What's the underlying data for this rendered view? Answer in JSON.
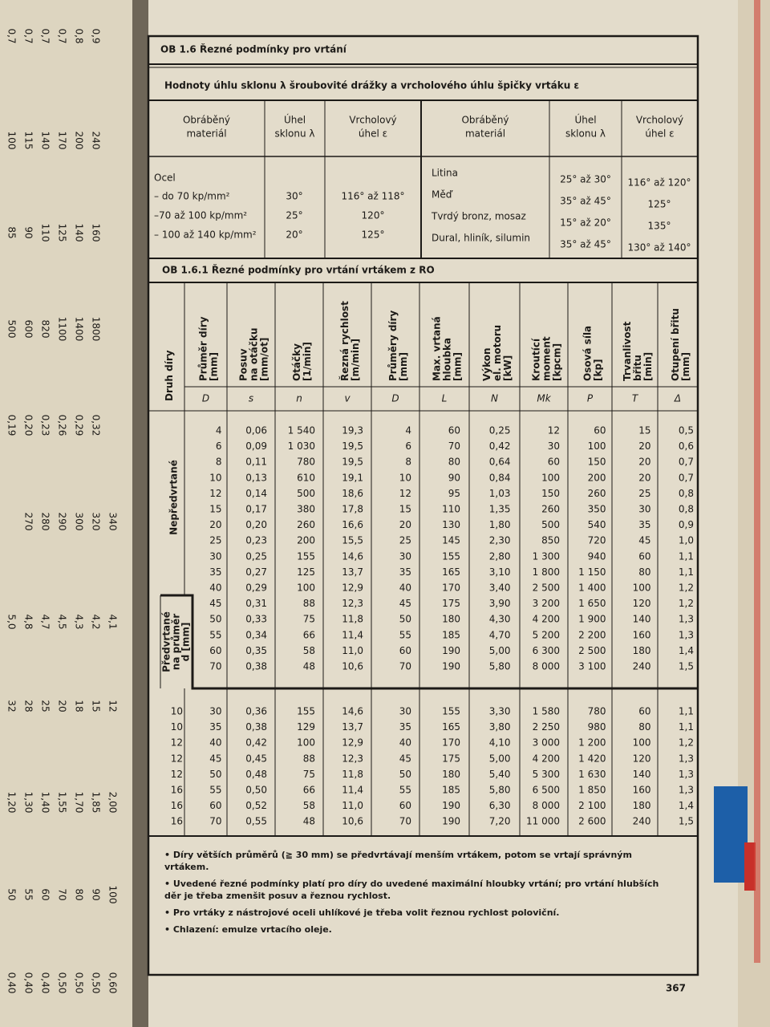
{
  "left_page": {
    "groups": [
      [
        "0,7",
        "0,7",
        "0,7",
        "0,7",
        "0,8",
        "0,9"
      ],
      [
        "100",
        "115",
        "140",
        "170",
        "200",
        "240"
      ],
      [
        "85",
        "90",
        "110",
        "125",
        "140",
        "160"
      ],
      [
        "500",
        "600",
        "820",
        "1100",
        "1400",
        "1800"
      ],
      [
        "0,19",
        "0,20",
        "0,23",
        "0,26",
        "0,29",
        "0,32"
      ],
      [
        null,
        "270",
        "280",
        "290",
        "300",
        "320",
        "340"
      ],
      [
        "5,0",
        "4,8",
        "4,7",
        "4,5",
        "4,3",
        "4,2",
        "4,1"
      ],
      [
        "32",
        "28",
        "25",
        "20",
        "18",
        "15",
        "12"
      ],
      [
        "1,20",
        "1,30",
        "1,40",
        "1,55",
        "1,70",
        "1,85",
        "2,00"
      ],
      [
        "50",
        "55",
        "60",
        "70",
        "80",
        "90",
        "100"
      ],
      [
        "0,40",
        "0,40",
        "0,40",
        "0,50",
        "0,50",
        "0,50",
        "0,60"
      ]
    ]
  },
  "title": "OB 1.6 Řezné podmínky pro vrtání",
  "subtitle": "Hodnoty úhlu sklonu λ šroubovité drážky a vrcholového úhlu špičky vrtáku ε",
  "top_table": {
    "headers": [
      [
        "Obráběný",
        "materiál"
      ],
      [
        "Úhel",
        "sklonu λ"
      ],
      [
        "Vrcholový",
        "úhel ε"
      ],
      [
        "Obráběný",
        "materiál"
      ],
      [
        "Úhel",
        "sklonu λ"
      ],
      [
        "Vrcholový",
        "úhel ε"
      ]
    ],
    "left_group": "Ocel",
    "left_rows": [
      [
        "– do 70 kp/mm²",
        "30°",
        "116° až 118°"
      ],
      [
        "–70 až 100 kp/mm²",
        "25°",
        "120°"
      ],
      [
        "– 100 až 140 kp/mm²",
        "20°",
        "125°"
      ]
    ],
    "right_rows": [
      [
        "Litina",
        "25° až 30°",
        "116° až 120°"
      ],
      [
        "Měď",
        "35° až 45°",
        "125°"
      ],
      [
        "Tvrdý bronz, mosaz",
        "15° až 20°",
        "135°"
      ],
      [
        "Dural, hliník, silumin",
        "35° až 45°",
        "130° až 140°"
      ]
    ]
  },
  "section_title": "OB 1.6.1 Řezné podmínky pro vrtání vrtákem z RO",
  "main_table": {
    "headers": [
      [
        "Druh díry"
      ],
      [
        "Průměr díry",
        "[mm]"
      ],
      [
        "Posuv",
        "na otáčku",
        "[mm/ot]"
      ],
      [
        "Otáčky",
        "[1/min]"
      ],
      [
        "Řezná rychlost",
        "[m/min]"
      ],
      [
        "Průměry díry",
        "[mm]"
      ],
      [
        "Max. vrtaná",
        "hloubka",
        "[mm]"
      ],
      [
        "Výkon",
        "el. motoru",
        "[kW]"
      ],
      [
        "Kroutící",
        "moment",
        "[kpcm]"
      ],
      [
        "Osová síla",
        "[kp]"
      ],
      [
        "Trvanlivost",
        "břitu",
        "[min]"
      ],
      [
        "Otupení břitu",
        "[mm]"
      ]
    ],
    "symbols": [
      "D",
      "s",
      "n",
      "v",
      "D",
      "L",
      "N",
      "Mk",
      "P",
      "T",
      "Δ"
    ],
    "group_undrilled": "Nepředvrtané",
    "group_predrilled": [
      "Předvrtané",
      "na průměr",
      "d [mm]"
    ],
    "rows_undrilled": [
      [
        "4",
        "0,06",
        "1 540",
        "19,3",
        "4",
        "60",
        "0,25",
        "12",
        "60",
        "15",
        "0,5"
      ],
      [
        "6",
        "0,09",
        "1 030",
        "19,5",
        "6",
        "70",
        "0,42",
        "30",
        "100",
        "20",
        "0,6"
      ],
      [
        "8",
        "0,11",
        "780",
        "19,5",
        "8",
        "80",
        "0,64",
        "60",
        "150",
        "20",
        "0,7"
      ],
      [
        "10",
        "0,13",
        "610",
        "19,1",
        "10",
        "90",
        "0,84",
        "100",
        "200",
        "20",
        "0,7"
      ],
      [
        "12",
        "0,14",
        "500",
        "18,6",
        "12",
        "95",
        "1,03",
        "150",
        "260",
        "25",
        "0,8"
      ],
      [
        "15",
        "0,17",
        "380",
        "17,8",
        "15",
        "110",
        "1,35",
        "260",
        "350",
        "30",
        "0,8"
      ],
      [
        "20",
        "0,20",
        "260",
        "16,6",
        "20",
        "130",
        "1,80",
        "500",
        "540",
        "35",
        "0,9"
      ],
      [
        "25",
        "0,23",
        "200",
        "15,5",
        "25",
        "145",
        "2,30",
        "850",
        "720",
        "45",
        "1,0"
      ],
      [
        "30",
        "0,25",
        "155",
        "14,6",
        "30",
        "155",
        "2,80",
        "1 300",
        "940",
        "60",
        "1,1"
      ],
      [
        "35",
        "0,27",
        "125",
        "13,7",
        "35",
        "165",
        "3,10",
        "1 800",
        "1 150",
        "80",
        "1,1"
      ],
      [
        "40",
        "0,29",
        "100",
        "12,9",
        "40",
        "170",
        "3,40",
        "2 500",
        "1 400",
        "100",
        "1,2"
      ],
      [
        "45",
        "0,31",
        "88",
        "12,3",
        "45",
        "175",
        "3,90",
        "3 200",
        "1 650",
        "120",
        "1,2"
      ],
      [
        "50",
        "0,33",
        "75",
        "11,8",
        "50",
        "180",
        "4,30",
        "4 200",
        "1 900",
        "140",
        "1,3"
      ],
      [
        "55",
        "0,34",
        "66",
        "11,4",
        "55",
        "185",
        "4,70",
        "5 200",
        "2 200",
        "160",
        "1,3"
      ],
      [
        "60",
        "0,35",
        "58",
        "11,0",
        "60",
        "190",
        "5,00",
        "6 300",
        "2 500",
        "180",
        "1,4"
      ],
      [
        "70",
        "0,38",
        "48",
        "10,6",
        "70",
        "190",
        "5,80",
        "8 000",
        "3 100",
        "240",
        "1,5"
      ]
    ],
    "rows_predrilled": [
      [
        "10",
        "30",
        "0,36",
        "155",
        "14,6",
        "30",
        "155",
        "3,30",
        "1 580",
        "780",
        "60",
        "1,1"
      ],
      [
        "10",
        "35",
        "0,38",
        "129",
        "13,7",
        "35",
        "165",
        "3,80",
        "2 250",
        "980",
        "80",
        "1,1"
      ],
      [
        "12",
        "40",
        "0,42",
        "100",
        "12,9",
        "40",
        "170",
        "4,10",
        "3 000",
        "1 200",
        "100",
        "1,2"
      ],
      [
        "12",
        "45",
        "0,45",
        "88",
        "12,3",
        "45",
        "175",
        "5,00",
        "4 200",
        "1 420",
        "120",
        "1,3"
      ],
      [
        "12",
        "50",
        "0,48",
        "75",
        "11,8",
        "50",
        "180",
        "5,40",
        "5 300",
        "1 630",
        "140",
        "1,3"
      ],
      [
        "16",
        "55",
        "0,50",
        "66",
        "11,4",
        "55",
        "185",
        "5,80",
        "6 500",
        "1 850",
        "160",
        "1,3"
      ],
      [
        "16",
        "60",
        "0,52",
        "58",
        "11,0",
        "60",
        "190",
        "6,30",
        "8 000",
        "2 100",
        "180",
        "1,4"
      ],
      [
        "16",
        "70",
        "0,55",
        "48",
        "10,6",
        "70",
        "190",
        "7,20",
        "11 000",
        "2 600",
        "240",
        "1,5"
      ]
    ]
  },
  "footnotes": [
    "• Díry větších průměrů (≧ 30 mm) se předvrtávají menším vrtákem, potom se vrtají správným vrtákem.",
    "• Uvedené řezné podmínky platí pro díry do uvedené maximální hloubky vrtání; pro vrtání hlubších děr je třeba zmenšit posuv a řeznou rychlost.",
    "• Pro vrtáky z nástrojové oceli uhlíkové je třeba volit řeznou rychlost poloviční.",
    "• Chlazení: emulze vrtacího oleje."
  ],
  "page_number": "367"
}
